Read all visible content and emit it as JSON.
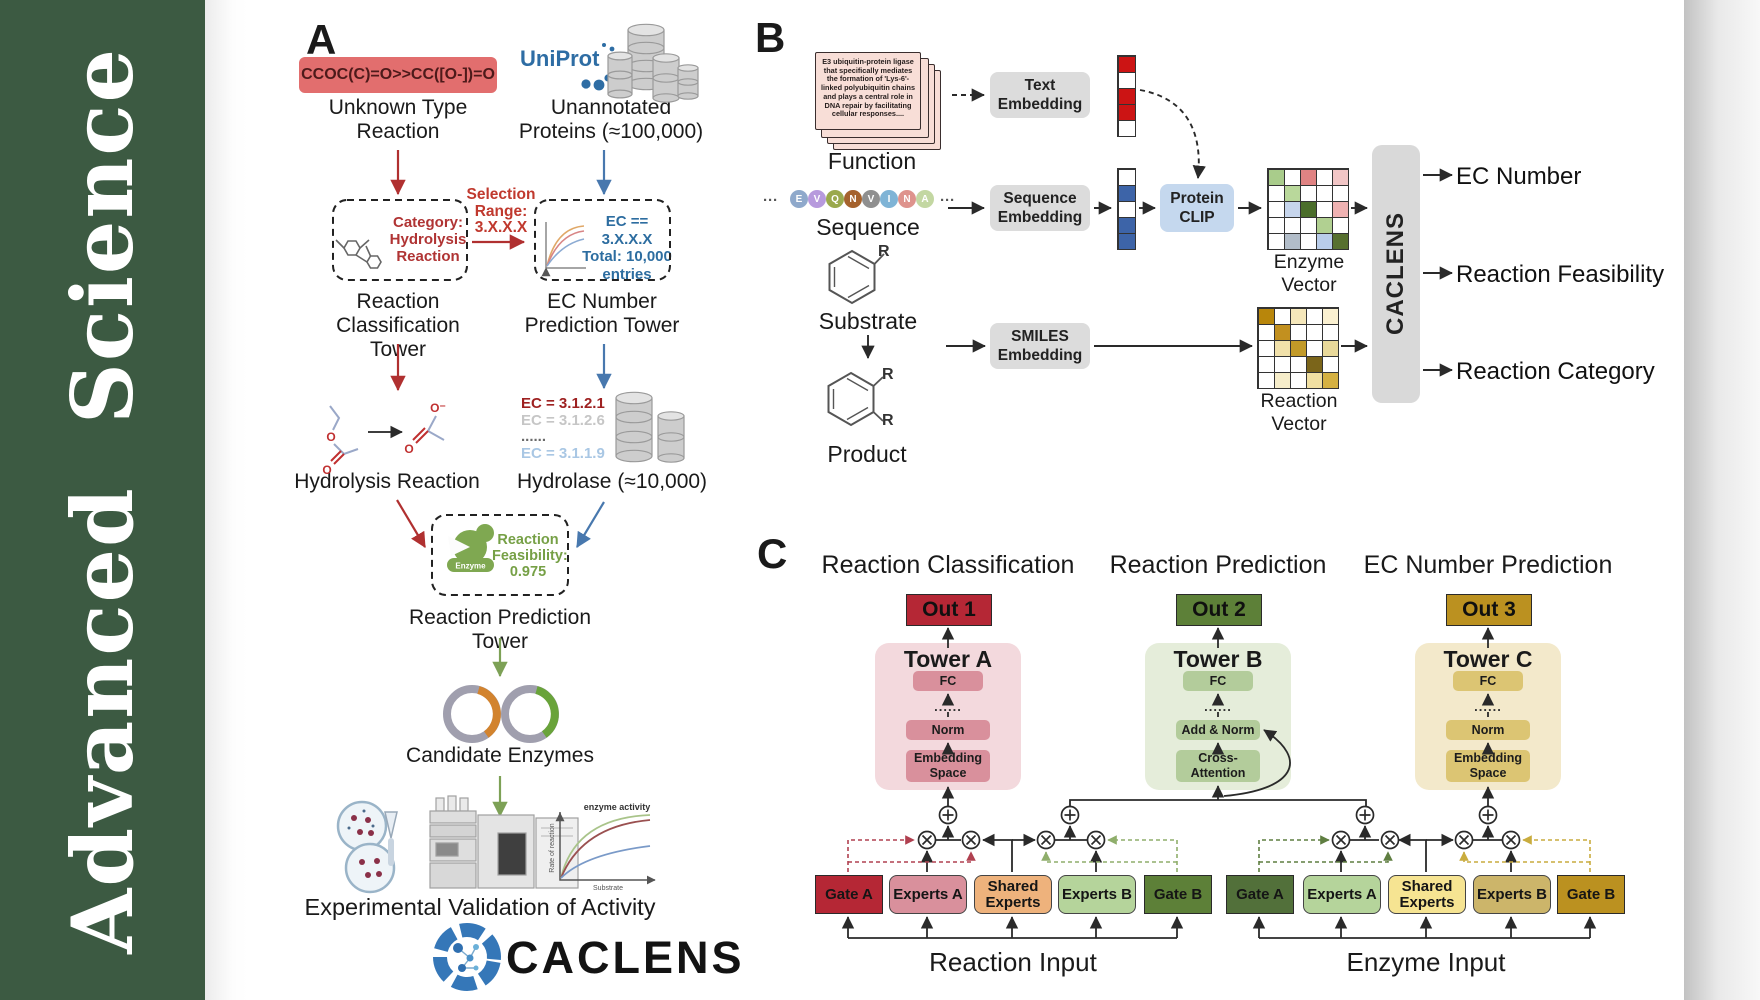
{
  "sidebar": {
    "journal": "Advanced  Science",
    "bg": "#3c5a42"
  },
  "panelA": {
    "label": "A",
    "smiles_box": "CCOC(C)=O>>CC([O-])=O",
    "unknown_reaction": [
      "Unknown Type",
      "Reaction"
    ],
    "uniprot": "UniProt",
    "unannotated": [
      "Unannotated",
      "Proteins (≈100,000)"
    ],
    "selection": [
      "Selection",
      "Range:",
      "3.X.X.X"
    ],
    "classification_box": [
      "Category:",
      "Hydrolysis",
      "Reaction"
    ],
    "ec_box": [
      "EC == 3.X.X.X",
      "Total: 10,000",
      "entries"
    ],
    "tower1": [
      "Reaction",
      "Classification Tower"
    ],
    "tower2": [
      "EC Number",
      "Prediction Tower"
    ],
    "hydrolysis": "Hydrolysis Reaction",
    "ec_list": [
      {
        "text": "EC = 3.1.2.1",
        "color": "#9e2121"
      },
      {
        "text": "EC = 3.1.2.6",
        "color": "#c6c6c6"
      },
      {
        "text": "......",
        "color": "#6a6a6a"
      },
      {
        "text": "EC = 3.1.1.9",
        "color": "#a9c7e4"
      }
    ],
    "hydrolase": "Hydrolase (≈10,000)",
    "enzyme_icon_label": "Enzyme",
    "feasibility": [
      "Reaction",
      "Feasibility:",
      "0.975"
    ],
    "tower3": "Reaction Prediction Tower",
    "candidates": "Candidate Enzymes",
    "validation": "Experimental Validation of Activity",
    "graph": {
      "title": "enzyme activity",
      "ylabel": "Rate of reaction",
      "xlabel": "Substrate"
    },
    "brand": "CACLENS"
  },
  "panelB": {
    "label": "B",
    "function_card": "E3 ubiquitin-protein ligase that specifically mediates the formation of 'Lys-6'-linked polyubiquitin chains and plays a central role in DNA repair by facilitating cellular responses....",
    "function_label": "Function",
    "ellipsis": "···",
    "residues": [
      {
        "l": "E",
        "c": "#8fa9cb"
      },
      {
        "l": "V",
        "c": "#b79add"
      },
      {
        "l": "Q",
        "c": "#9aa94d"
      },
      {
        "l": "N",
        "c": "#a5622d"
      },
      {
        "l": "V",
        "c": "#8f8f8f"
      },
      {
        "l": "I",
        "c": "#7fb4d6"
      },
      {
        "l": "N",
        "c": "#de938d"
      },
      {
        "l": "A",
        "c": "#c3d7a2"
      }
    ],
    "sequence_label": "Sequence",
    "substrate_label": "Substrate",
    "product_label": "Product",
    "r_label": "R",
    "text_embedding": [
      "Text",
      "Embedding"
    ],
    "sequence_embedding": [
      "Sequence",
      "Embedding"
    ],
    "smiles_embedding": [
      "SMILES",
      "Embedding"
    ],
    "protein_clip": [
      "Protein",
      "CLIP"
    ],
    "text_vector": [
      "#cc1414",
      "#ffffff",
      "#cc1414",
      "#cc1414",
      "#ffffff"
    ],
    "sequence_vector": [
      "#ffffff",
      "#3d64a8",
      "#ffffff",
      "#3d64a8",
      "#3d64a8"
    ],
    "enzyme_vector": {
      "label": "Enzyme Vector",
      "cells": [
        "#a9cc8b",
        "#ffffff",
        "#e08383",
        "#ffffff",
        "#f2c6c6",
        "#ffffff",
        "#b9d89b",
        "#ffffff",
        "#ffffff",
        "#ffffff",
        "#ffffff",
        "#c6d5ec",
        "#4b6e2b",
        "#ffffff",
        "#efb2b2",
        "#ffffff",
        "#ffffff",
        "#ffffff",
        "#b1d091",
        "#ffffff",
        "#ffffff",
        "#b2bdc9",
        "#ffffff",
        "#b9cdea",
        "#57702f"
      ]
    },
    "reaction_vector": {
      "label": "Reaction Vector",
      "cells": [
        "#b8860b",
        "#ffffff",
        "#f5e7ba",
        "#ffffff",
        "#fbf1d1",
        "#ffffff",
        "#c2901f",
        "#ffffff",
        "#ffffff",
        "#ffffff",
        "#ffffff",
        "#f1e1aa",
        "#c29a28",
        "#ffffff",
        "#e9d99a",
        "#ffffff",
        "#ffffff",
        "#ffffff",
        "#7b651a",
        "#ffffff",
        "#ffffff",
        "#f6edca",
        "#ffffff",
        "#f1e0a2",
        "#d5b142"
      ]
    },
    "caclens": "CACLENS",
    "outputs": [
      "EC Number",
      "Reaction Feasibility",
      "Reaction Category"
    ]
  },
  "panelC": {
    "label": "C",
    "columns": [
      {
        "title": "Reaction Classification",
        "out": "Out 1",
        "out_bg": "#b52735",
        "tower": "Tower A",
        "panel_bg": "#f3d9dd",
        "box_bg": "#d9909c",
        "box_border": "#77333f",
        "dots": "......",
        "blocks": [
          "FC",
          "Norm",
          [
            "Embedding",
            "Space"
          ]
        ]
      },
      {
        "title": "Reaction Prediction",
        "out": "Out 2",
        "out_bg": "#5d8038",
        "tower": "Tower B",
        "panel_bg": "#e5edda",
        "box_bg": "#b3cc9b",
        "box_border": "#3f5c29",
        "dots": "......",
        "blocks": [
          "FC",
          "Add & Norm",
          [
            "Cross-",
            "Attention"
          ]
        ]
      },
      {
        "title": "EC Number Prediction",
        "out": "Out 3",
        "out_bg": "#bb9120",
        "tower": "Tower C",
        "panel_bg": "#f3e9cb",
        "box_bg": "#dcc573",
        "box_border": "#6d5a18",
        "dots": "......",
        "blocks": [
          "FC",
          "Norm",
          [
            "Embedding",
            "Space"
          ]
        ]
      }
    ],
    "groups": [
      {
        "label": "Reaction Input",
        "boxes": [
          {
            "t": "Gate A",
            "bg": "#b52735",
            "sq": true
          },
          {
            "t": "Experts A",
            "bg": "#d9909c"
          },
          {
            "t": "Shared Experts",
            "bg": "#eeb27c"
          },
          {
            "t": "Experts B",
            "bg": "#b5d49b"
          },
          {
            "t": "Gate B",
            "bg": "#5d8038",
            "sq": true
          }
        ]
      },
      {
        "label": "Enzyme Input",
        "boxes": [
          {
            "t": "Gate A",
            "bg": "#52703a",
            "sq": true
          },
          {
            "t": "Experts A",
            "bg": "#b5d49b"
          },
          {
            "t": "Shared Experts",
            "bg": "#f6e492"
          },
          {
            "t": "Experts B",
            "bg": "#ccb56a"
          },
          {
            "t": "Gate B",
            "bg": "#bb9120",
            "sq": true
          }
        ]
      }
    ]
  }
}
